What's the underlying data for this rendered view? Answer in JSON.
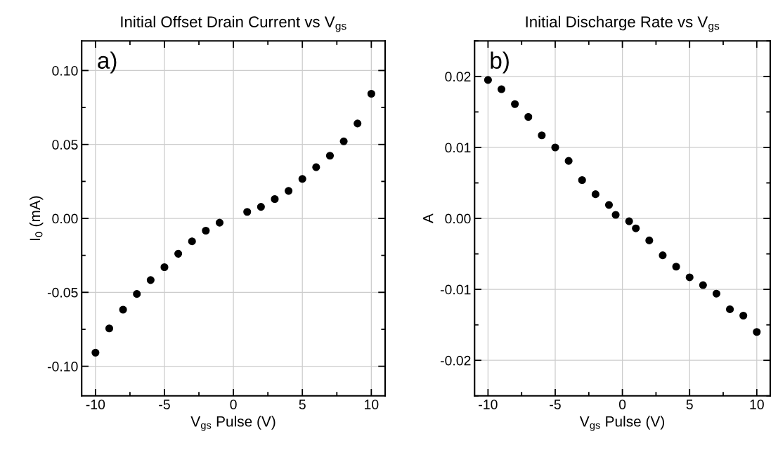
{
  "chart_data": [
    {
      "type": "scatter",
      "title": "Initial Offset Drain Current vs V$_{gs}$",
      "xlabel": "V$_{gs}$ Pulse (V)",
      "ylabel": "I$_{0}$ (mA)",
      "annotations": [
        "a)"
      ],
      "x": [
        -10,
        -9,
        -8,
        -7,
        -6,
        -5,
        -4,
        -3,
        -2,
        -1,
        1,
        2,
        3,
        4,
        5,
        6,
        7,
        8,
        9,
        10
      ],
      "series": [
        {
          "color": "#000000",
          "values": [
            -0.0908,
            -0.0744,
            -0.0617,
            -0.0511,
            -0.0417,
            -0.033,
            -0.0239,
            -0.0155,
            -0.0083,
            -0.0029,
            0.0044,
            0.0078,
            0.0131,
            0.0186,
            0.0267,
            0.0346,
            0.0424,
            0.0521,
            0.0642,
            0.0843
          ]
        }
      ],
      "xlim": [
        -11,
        11
      ],
      "xticks": [
        -10,
        -5,
        0,
        5,
        10
      ],
      "ylim": [
        -0.12,
        0.12
      ],
      "yticks": [
        {
          "value": -0.1,
          "label": "-0.10"
        },
        {
          "value": -0.05,
          "label": "-0.05"
        },
        {
          "value": 0,
          "label": "0.00"
        },
        {
          "value": 0.05,
          "label": "0.05"
        },
        {
          "value": 0.1,
          "label": "0.10"
        }
      ],
      "grid": true,
      "marker": "circle"
    },
    {
      "type": "scatter",
      "title": "Initial Discharge Rate vs V$_{gs}$",
      "xlabel": "V$_{gs}$ Pulse (V)",
      "ylabel": "A",
      "annotations": [
        "b)"
      ],
      "x": [
        -10,
        -9,
        -8,
        -7,
        -6,
        -5,
        -4,
        -3,
        -2,
        -1,
        -0.5,
        0.5,
        1,
        2,
        3,
        4,
        5,
        6,
        7,
        8,
        9,
        10
      ],
      "series": [
        {
          "color": "#000000",
          "values": [
            0.0195,
            0.0182,
            0.0161,
            0.0143,
            0.0117,
            0.01,
            0.0081,
            0.0054,
            0.0034,
            0.0019,
            0.0005,
            -0.0004,
            -0.0014,
            -0.0031,
            -0.0052,
            -0.0068,
            -0.0083,
            -0.0094,
            -0.0106,
            -0.0128,
            -0.0137,
            -0.016
          ]
        }
      ],
      "xlim": [
        -11,
        11
      ],
      "xticks": [
        -10,
        -5,
        0,
        5,
        10
      ],
      "ylim": [
        -0.025,
        0.025
      ],
      "yticks": [
        {
          "value": -0.02,
          "label": "-0.02"
        },
        {
          "value": -0.01,
          "label": "-0.01"
        },
        {
          "value": 0,
          "label": "0.00"
        },
        {
          "value": 0.01,
          "label": "0.01"
        },
        {
          "value": 0.02,
          "label": "0.02"
        }
      ],
      "grid": true,
      "marker": "circle"
    }
  ]
}
